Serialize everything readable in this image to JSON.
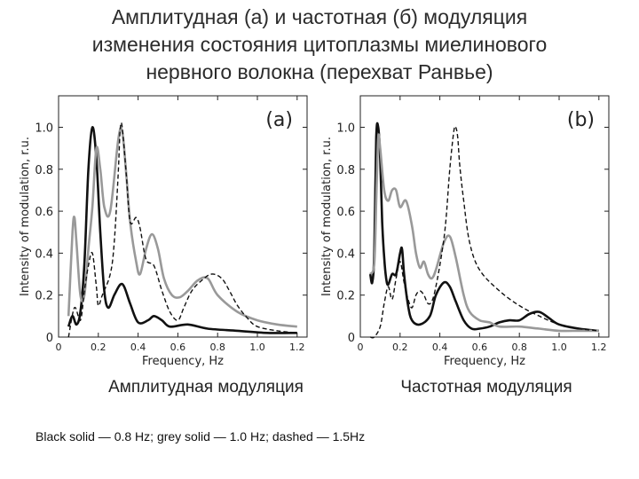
{
  "slide": {
    "title_lines": [
      "Амплитудная (а) и частотная (б) модуляция",
      "изменения состояния цитоплазмы миелинового",
      "нервного волокна (перехват Ранвье)"
    ],
    "caption_a": "Амплитудная модуляция",
    "caption_b": "Частотная модуляция",
    "footnote": "Black solid — 0.8 Hz; grey solid — 1.0 Hz; dashed — 1.5Hz"
  },
  "chart_data": [
    {
      "type": "line",
      "panel_label": "(a)",
      "xlabel": "Frequency, Hz",
      "ylabel": "Intensity of modulation, r.u.",
      "xlim": [
        0,
        1.25
      ],
      "ylim": [
        0,
        1.15
      ],
      "xticks": [
        "0",
        "0.2",
        "0.4",
        "0.6",
        "0.8",
        "1.0",
        "1.2"
      ],
      "xtick_values": [
        0,
        0.2,
        0.4,
        0.6,
        0.8,
        1.0,
        1.2
      ],
      "yticks": [
        "0",
        "0.2",
        "0.4",
        "0.6",
        "0.8",
        "1.0"
      ],
      "ytick_values": [
        0,
        0.2,
        0.4,
        0.6,
        0.8,
        1.0
      ],
      "grid": false,
      "series": [
        {
          "color": "#111111",
          "style": "solid",
          "x": [
            0.05,
            0.07,
            0.09,
            0.11,
            0.13,
            0.15,
            0.17,
            0.19,
            0.21,
            0.23,
            0.25,
            0.28,
            0.31,
            0.33,
            0.36,
            0.4,
            0.45,
            0.48,
            0.52,
            0.56,
            0.65,
            0.75,
            0.9,
            1.05,
            1.2
          ],
          "y": [
            0.05,
            0.1,
            0.06,
            0.12,
            0.35,
            0.8,
            1.0,
            0.85,
            0.5,
            0.22,
            0.14,
            0.2,
            0.25,
            0.24,
            0.16,
            0.07,
            0.08,
            0.1,
            0.08,
            0.05,
            0.06,
            0.04,
            0.03,
            0.02,
            0.02
          ]
        },
        {
          "color": "#999999",
          "style": "solid",
          "x": [
            0.05,
            0.07,
            0.08,
            0.09,
            0.11,
            0.13,
            0.15,
            0.17,
            0.19,
            0.21,
            0.23,
            0.26,
            0.3,
            0.32,
            0.34,
            0.36,
            0.39,
            0.41,
            0.44,
            0.47,
            0.5,
            0.53,
            0.57,
            0.61,
            0.65,
            0.7,
            0.75,
            0.8,
            0.9,
            1.0,
            1.1,
            1.2
          ],
          "y": [
            0.1,
            0.5,
            0.57,
            0.45,
            0.2,
            0.2,
            0.42,
            0.62,
            0.9,
            0.8,
            0.62,
            0.6,
            0.94,
            0.98,
            0.78,
            0.55,
            0.36,
            0.3,
            0.42,
            0.49,
            0.42,
            0.28,
            0.2,
            0.19,
            0.22,
            0.27,
            0.28,
            0.2,
            0.12,
            0.08,
            0.06,
            0.05
          ]
        },
        {
          "color": "#111111",
          "style": "dashed",
          "x": [
            0.05,
            0.08,
            0.11,
            0.13,
            0.15,
            0.17,
            0.19,
            0.2,
            0.22,
            0.26,
            0.28,
            0.3,
            0.31,
            0.32,
            0.34,
            0.36,
            0.39,
            0.41,
            0.44,
            0.48,
            0.52,
            0.56,
            0.6,
            0.63,
            0.67,
            0.72,
            0.77,
            0.82,
            0.86,
            0.9,
            0.95,
            1.0,
            1.1,
            1.2
          ],
          "y": [
            0.0,
            0.14,
            0.08,
            0.22,
            0.34,
            0.4,
            0.24,
            0.15,
            0.2,
            0.3,
            0.45,
            0.78,
            0.99,
            1.0,
            0.78,
            0.55,
            0.57,
            0.52,
            0.37,
            0.34,
            0.22,
            0.12,
            0.08,
            0.14,
            0.22,
            0.27,
            0.3,
            0.28,
            0.22,
            0.15,
            0.09,
            0.05,
            0.03,
            0.02
          ]
        }
      ]
    },
    {
      "type": "line",
      "panel_label": "(b)",
      "xlabel": "Frequency, Hz",
      "ylabel": "Intensity of modulation, r.u.",
      "xlim": [
        0,
        1.25
      ],
      "ylim": [
        0,
        1.15
      ],
      "xticks": [
        "0",
        "0.2",
        "0.4",
        "0.6",
        "0.8",
        "1.0",
        "1.2"
      ],
      "xtick_values": [
        0,
        0.2,
        0.4,
        0.6,
        0.8,
        1.0,
        1.2
      ],
      "yticks": [
        "0",
        "0.2",
        "0.4",
        "0.6",
        "0.8",
        "1.0"
      ],
      "ytick_values": [
        0,
        0.2,
        0.4,
        0.6,
        0.8,
        1.0
      ],
      "grid": false,
      "series": [
        {
          "color": "#111111",
          "style": "solid",
          "x": [
            0.05,
            0.06,
            0.07,
            0.08,
            0.09,
            0.1,
            0.11,
            0.12,
            0.13,
            0.14,
            0.16,
            0.18,
            0.2,
            0.21,
            0.22,
            0.24,
            0.26,
            0.3,
            0.35,
            0.38,
            0.42,
            0.45,
            0.48,
            0.52,
            0.56,
            0.6,
            0.65,
            0.7,
            0.75,
            0.8,
            0.85,
            0.9,
            0.95,
            1.0,
            1.1,
            1.2
          ],
          "y": [
            0.3,
            0.26,
            0.4,
            0.95,
            1.0,
            0.85,
            0.55,
            0.38,
            0.28,
            0.25,
            0.3,
            0.3,
            0.4,
            0.42,
            0.3,
            0.15,
            0.08,
            0.06,
            0.1,
            0.2,
            0.26,
            0.24,
            0.17,
            0.08,
            0.04,
            0.04,
            0.05,
            0.07,
            0.08,
            0.08,
            0.11,
            0.12,
            0.09,
            0.06,
            0.04,
            0.03
          ]
        },
        {
          "color": "#999999",
          "style": "solid",
          "x": [
            0.05,
            0.07,
            0.08,
            0.09,
            0.1,
            0.12,
            0.14,
            0.16,
            0.18,
            0.2,
            0.23,
            0.26,
            0.28,
            0.3,
            0.32,
            0.34,
            0.36,
            0.38,
            0.42,
            0.45,
            0.48,
            0.52,
            0.55,
            0.6,
            0.65,
            0.7,
            0.8,
            0.9,
            1.0,
            1.1,
            1.2
          ],
          "y": [
            0.3,
            0.35,
            0.65,
            0.95,
            0.9,
            0.7,
            0.65,
            0.7,
            0.7,
            0.62,
            0.65,
            0.53,
            0.4,
            0.33,
            0.36,
            0.3,
            0.28,
            0.32,
            0.45,
            0.48,
            0.38,
            0.2,
            0.12,
            0.08,
            0.07,
            0.05,
            0.05,
            0.04,
            0.03,
            0.03,
            0.03
          ]
        },
        {
          "color": "#111111",
          "style": "dashed",
          "x": [
            0.05,
            0.07,
            0.1,
            0.12,
            0.14,
            0.16,
            0.18,
            0.2,
            0.22,
            0.24,
            0.26,
            0.28,
            0.3,
            0.32,
            0.34,
            0.36,
            0.38,
            0.41,
            0.43,
            0.45,
            0.47,
            0.48,
            0.49,
            0.5,
            0.52,
            0.55,
            0.6,
            0.7,
            0.8,
            0.9,
            1.0,
            1.1,
            1.2
          ],
          "y": [
            0.0,
            0.0,
            0.05,
            0.16,
            0.24,
            0.18,
            0.28,
            0.36,
            0.26,
            0.18,
            0.14,
            0.2,
            0.22,
            0.2,
            0.16,
            0.17,
            0.24,
            0.4,
            0.55,
            0.8,
            0.98,
            1.0,
            0.95,
            0.82,
            0.65,
            0.45,
            0.32,
            0.22,
            0.15,
            0.1,
            0.06,
            0.04,
            0.03
          ]
        }
      ]
    }
  ]
}
